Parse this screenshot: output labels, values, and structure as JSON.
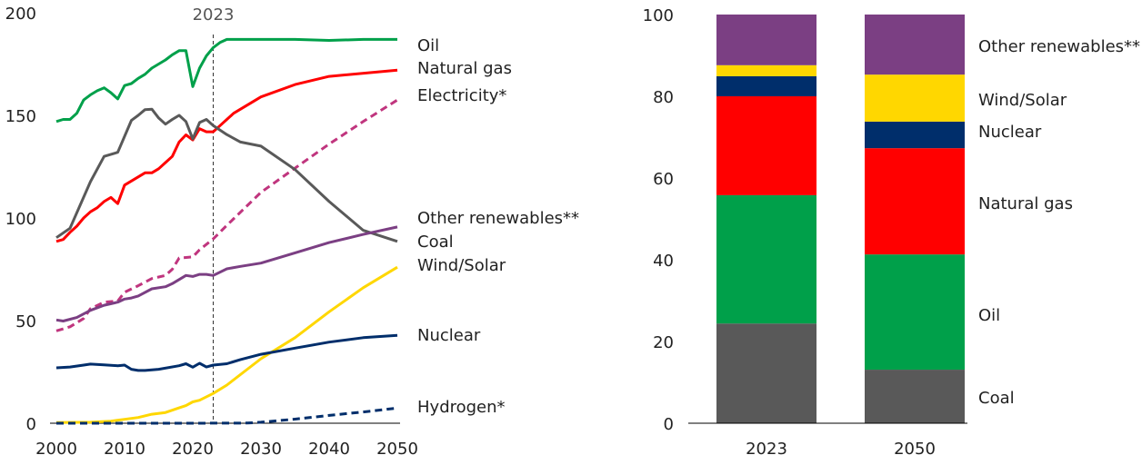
{
  "chart_data": [
    {
      "type": "line",
      "title": "",
      "xlabel": "",
      "ylabel": "",
      "xlim": [
        2000,
        2050
      ],
      "ylim": [
        0,
        200
      ],
      "x_ticks": [
        "2000",
        "2010",
        "2020",
        "2030",
        "2040",
        "2050"
      ],
      "y_ticks": [
        "0",
        "50",
        "100",
        "150",
        "200"
      ],
      "grid": false,
      "legend": "direct labels at right end of lines",
      "annotation": {
        "label": "2023",
        "x": 2023,
        "style": "dashed vertical line"
      },
      "series": [
        {
          "name": "Oil",
          "color": "#00a04a",
          "dashed": false,
          "points": [
            [
              2000,
              147
            ],
            [
              2001,
              148
            ],
            [
              2002,
              148
            ],
            [
              2003,
              151
            ],
            [
              2004,
              157.5
            ],
            [
              2005,
              160
            ],
            [
              2006,
              162
            ],
            [
              2007,
              163.4
            ],
            [
              2008,
              161
            ],
            [
              2009,
              158
            ],
            [
              2010,
              164.5
            ],
            [
              2011,
              165.5
            ],
            [
              2012,
              168
            ],
            [
              2013,
              170
            ],
            [
              2014,
              173
            ],
            [
              2015,
              175
            ],
            [
              2016,
              177
            ],
            [
              2017,
              179.5
            ],
            [
              2018,
              181.5
            ],
            [
              2019,
              181.5
            ],
            [
              2020,
              164
            ],
            [
              2021,
              173
            ],
            [
              2022,
              179
            ],
            [
              2023,
              183
            ],
            [
              2024,
              185.5
            ],
            [
              2025,
              187
            ],
            [
              2030,
              187
            ],
            [
              2035,
              187
            ],
            [
              2040,
              186.5
            ],
            [
              2045,
              187
            ],
            [
              2050,
              187
            ]
          ]
        },
        {
          "name": "Natural gas",
          "color": "#ff0000",
          "dashed": false,
          "points": [
            [
              2000,
              88.6
            ],
            [
              2001,
              89.5
            ],
            [
              2002,
              93
            ],
            [
              2003,
              96
            ],
            [
              2004,
              100
            ],
            [
              2005,
              103
            ],
            [
              2006,
              105
            ],
            [
              2007,
              108
            ],
            [
              2008,
              110
            ],
            [
              2009,
              107
            ],
            [
              2010,
              116
            ],
            [
              2011,
              118
            ],
            [
              2012,
              120
            ],
            [
              2013,
              122
            ],
            [
              2014,
              122
            ],
            [
              2015,
              124
            ],
            [
              2016,
              127
            ],
            [
              2017,
              130
            ],
            [
              2018,
              137
            ],
            [
              2019,
              140.5
            ],
            [
              2020,
              138
            ],
            [
              2021,
              143.5
            ],
            [
              2022,
              142
            ],
            [
              2023,
              142
            ],
            [
              2024,
              145
            ],
            [
              2025,
              148
            ],
            [
              2026,
              151
            ],
            [
              2030,
              159
            ],
            [
              2035,
              165
            ],
            [
              2040,
              169
            ],
            [
              2050,
              172
            ]
          ]
        },
        {
          "name": "Electricity*",
          "color": "#c0357e",
          "dashed": true,
          "points": [
            [
              2000,
              45
            ],
            [
              2002,
              47
            ],
            [
              2004,
              51
            ],
            [
              2005,
              55.8
            ],
            [
              2007,
              59
            ],
            [
              2009,
              59.5
            ],
            [
              2010,
              63.8
            ],
            [
              2012,
              67
            ],
            [
              2014,
              70.5
            ],
            [
              2016,
              72
            ],
            [
              2017,
              75
            ],
            [
              2018,
              80.5
            ],
            [
              2020,
              81
            ],
            [
              2021,
              84.5
            ],
            [
              2023,
              89.8
            ],
            [
              2025,
              96.4
            ],
            [
              2030,
              112.5
            ],
            [
              2035,
              124.3
            ],
            [
              2040,
              136
            ],
            [
              2045,
              147
            ],
            [
              2050,
              157.5
            ]
          ]
        },
        {
          "name": "Coal",
          "color": "#595959",
          "dashed": false,
          "points": [
            [
              2000,
              90.4
            ],
            [
              2002,
              95
            ],
            [
              2005,
              117.7
            ],
            [
              2007,
              130
            ],
            [
              2009,
              132
            ],
            [
              2011,
              147.5
            ],
            [
              2012,
              150
            ],
            [
              2013,
              152.8
            ],
            [
              2014,
              153
            ],
            [
              2015,
              148.7
            ],
            [
              2016,
              145.7
            ],
            [
              2017,
              148
            ],
            [
              2018,
              150
            ],
            [
              2019,
              147
            ],
            [
              2020,
              138.5
            ],
            [
              2021,
              146.5
            ],
            [
              2022,
              148
            ],
            [
              2023,
              145
            ],
            [
              2025,
              140.6
            ],
            [
              2027,
              137
            ],
            [
              2030,
              135
            ],
            [
              2035,
              123.6
            ],
            [
              2040,
              108
            ],
            [
              2045,
              94
            ],
            [
              2050,
              88.6
            ]
          ]
        },
        {
          "name": "Other renewables**",
          "color": "#7b3f83",
          "dashed": false,
          "points": [
            [
              2000,
              50.3
            ],
            [
              2001,
              49.8
            ],
            [
              2003,
              51.5
            ],
            [
              2005,
              55
            ],
            [
              2007,
              57.5
            ],
            [
              2009,
              59
            ],
            [
              2010,
              60.5
            ],
            [
              2011,
              61
            ],
            [
              2012,
              62
            ],
            [
              2014,
              65.5
            ],
            [
              2016,
              66.5
            ],
            [
              2017,
              68
            ],
            [
              2018,
              70
            ],
            [
              2019,
              72
            ],
            [
              2020,
              71.5
            ],
            [
              2021,
              72.5
            ],
            [
              2022,
              72.5
            ],
            [
              2023,
              72
            ],
            [
              2025,
              75.2
            ],
            [
              2027,
              76.4
            ],
            [
              2030,
              78
            ],
            [
              2035,
              83
            ],
            [
              2040,
              88
            ],
            [
              2045,
              92
            ],
            [
              2050,
              95.6
            ]
          ]
        },
        {
          "name": "Wind/Solar",
          "color": "#ffd700",
          "dashed": false,
          "points": [
            [
              2000,
              0.3
            ],
            [
              2005,
              0.5
            ],
            [
              2008,
              1
            ],
            [
              2010,
              1.9
            ],
            [
              2012,
              2.8
            ],
            [
              2014,
              4.4
            ],
            [
              2016,
              5.2
            ],
            [
              2018,
              7.5
            ],
            [
              2019,
              8.6
            ],
            [
              2020,
              10.4
            ],
            [
              2021,
              11.2
            ],
            [
              2023,
              14.5
            ],
            [
              2025,
              18.6
            ],
            [
              2030,
              31.4
            ],
            [
              2035,
              41.7
            ],
            [
              2040,
              54.3
            ],
            [
              2045,
              66
            ],
            [
              2050,
              76
            ]
          ]
        },
        {
          "name": "Nuclear",
          "color": "#002e6b",
          "dashed": false,
          "points": [
            [
              2000,
              27
            ],
            [
              2002,
              27.4
            ],
            [
              2004,
              28.3
            ],
            [
              2005,
              28.8
            ],
            [
              2007,
              28.4
            ],
            [
              2009,
              28
            ],
            [
              2010,
              28.3
            ],
            [
              2011,
              26.3
            ],
            [
              2012,
              25.7
            ],
            [
              2013,
              25.7
            ],
            [
              2015,
              26.3
            ],
            [
              2018,
              28
            ],
            [
              2019,
              29
            ],
            [
              2020,
              27.3
            ],
            [
              2021,
              29.2
            ],
            [
              2022,
              27.4
            ],
            [
              2023,
              28.3
            ],
            [
              2025,
              29
            ],
            [
              2027,
              31
            ],
            [
              2030,
              33.6
            ],
            [
              2035,
              36.6
            ],
            [
              2040,
              39.5
            ],
            [
              2045,
              41.7
            ],
            [
              2050,
              42.8
            ]
          ]
        },
        {
          "name": "Hydrogen*",
          "color": "#002e6b",
          "dashed": true,
          "points": [
            [
              2000,
              0
            ],
            [
              2010,
              0
            ],
            [
              2020,
              0
            ],
            [
              2028,
              0.1
            ],
            [
              2030,
              0.5
            ],
            [
              2035,
              2
            ],
            [
              2040,
              3.8
            ],
            [
              2045,
              5.5
            ],
            [
              2050,
              7.4
            ]
          ]
        }
      ]
    },
    {
      "type": "bar",
      "stacked": true,
      "title": "",
      "xlabel": "",
      "ylabel": "",
      "ylim": [
        0,
        100
      ],
      "y_ticks": [
        "0",
        "20",
        "40",
        "60",
        "80",
        "100"
      ],
      "categories": [
        "2023",
        "2050"
      ],
      "grid": false,
      "legend": "direct labels right of 2050 bar",
      "series": [
        {
          "name": "Coal",
          "color": "#595959",
          "values": [
            24.4,
            13.1
          ]
        },
        {
          "name": "Oil",
          "color": "#00a04a",
          "values": [
            31.4,
            28.2
          ]
        },
        {
          "name": "Natural gas",
          "color": "#ff0000",
          "values": [
            24.2,
            26.0
          ]
        },
        {
          "name": "Nuclear",
          "color": "#002e6b",
          "values": [
            4.9,
            6.5
          ]
        },
        {
          "name": "Wind/Solar",
          "color": "#ffd700",
          "values": [
            2.7,
            11.5
          ]
        },
        {
          "name": "Other renewables**",
          "color": "#7b3f83",
          "values": [
            12.4,
            14.7
          ]
        }
      ]
    }
  ]
}
